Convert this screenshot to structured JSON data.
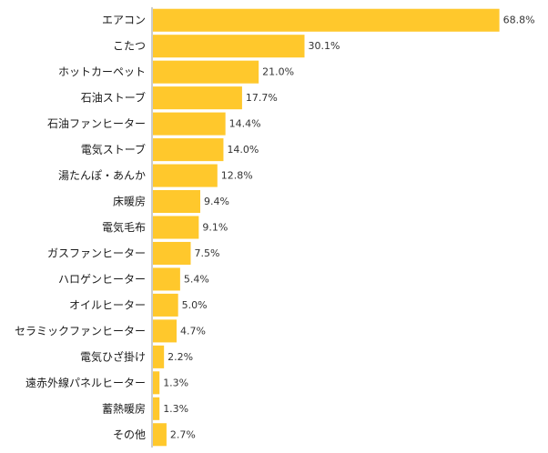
{
  "chart_data": {
    "type": "bar",
    "orientation": "horizontal",
    "categories": [
      "エアコン",
      "こたつ",
      "ホットカーペット",
      "石油ストーブ",
      "石油ファンヒーター",
      "電気ストーブ",
      "湯たんぽ・あんか",
      "床暖房",
      "電気毛布",
      "ガスファンヒーター",
      "ハロゲンヒーター",
      "オイルヒーター",
      "セラミックファンヒーター",
      "電気ひざ掛け",
      "遠赤外線パネルヒーター",
      "蓄熱暖房",
      "その他"
    ],
    "values": [
      68.8,
      30.1,
      21.0,
      17.7,
      14.4,
      14.0,
      12.8,
      9.4,
      9.1,
      7.5,
      5.4,
      5.0,
      4.7,
      2.2,
      1.3,
      1.3,
      2.7
    ],
    "value_labels": [
      "68.8%",
      "30.1%",
      "21.0%",
      "17.7%",
      "14.4%",
      "14.0%",
      "12.8%",
      "9.4%",
      "9.1%",
      "7.5%",
      "5.4%",
      "5.0%",
      "4.7%",
      "2.2%",
      "1.3%",
      "1.3%",
      "2.7%"
    ],
    "xlim": [
      0,
      70.5
    ],
    "grid": false,
    "legend": "none",
    "colors": {
      "bar": "#FFC82C",
      "axis": "#9a9a9a"
    }
  }
}
